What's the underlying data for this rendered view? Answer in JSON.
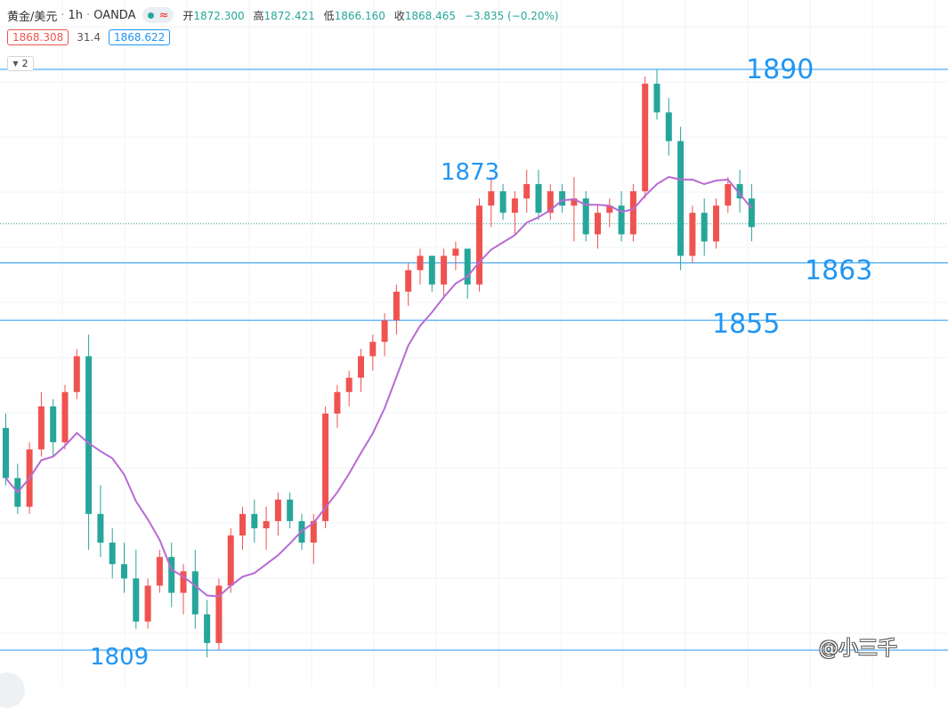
{
  "header": {
    "symbol": "黄金/美元",
    "interval": "1h",
    "source": "OANDA",
    "open_label": "开",
    "open": "1872.300",
    "high_label": "高",
    "high": "1872.421",
    "low_label": "低",
    "low": "1866.160",
    "close_label": "收",
    "close": "1868.465",
    "change": "−3.835 (−0.20%)"
  },
  "quote": {
    "bid": "1868.308",
    "spread": "31.4",
    "ask": "1868.622"
  },
  "indicator_toggle": {
    "count": "2"
  },
  "annotations": {
    "level_1890": "1890",
    "level_1873": "1873",
    "level_1863": "1863",
    "level_1855": "1855",
    "level_1809": "1809"
  },
  "watermark": "@小三千",
  "colors": {
    "up": "#ef5350",
    "down": "#26a69a",
    "ma": "#b86ad4",
    "level_line": "#2196f3"
  },
  "chart_data": {
    "type": "candlestick",
    "interval": "1h",
    "ylim": [
      1805,
      1893
    ],
    "horizontal_levels": [
      1890,
      1863,
      1855,
      1809
    ],
    "ohlc_approx": [
      [
        1840,
        1842,
        1832,
        1833
      ],
      [
        1833,
        1835,
        1828,
        1829
      ],
      [
        1829,
        1838,
        1828,
        1837
      ],
      [
        1837,
        1845,
        1836,
        1843
      ],
      [
        1843,
        1844,
        1836,
        1838
      ],
      [
        1838,
        1846,
        1837,
        1845
      ],
      [
        1845,
        1851,
        1844,
        1850
      ],
      [
        1850,
        1853,
        1823,
        1828
      ],
      [
        1828,
        1832,
        1822,
        1824
      ],
      [
        1824,
        1826,
        1819,
        1821
      ],
      [
        1821,
        1824,
        1817,
        1819
      ],
      [
        1819,
        1823,
        1812,
        1813
      ],
      [
        1813,
        1819,
        1812,
        1818
      ],
      [
        1818,
        1823,
        1817,
        1822
      ],
      [
        1822,
        1824,
        1815,
        1817
      ],
      [
        1817,
        1821,
        1814,
        1820
      ],
      [
        1820,
        1823,
        1812,
        1814
      ],
      [
        1814,
        1816,
        1808,
        1810
      ],
      [
        1810,
        1819,
        1809,
        1818
      ],
      [
        1818,
        1826,
        1817,
        1825
      ],
      [
        1825,
        1829,
        1823,
        1828
      ],
      [
        1828,
        1830,
        1824,
        1826
      ],
      [
        1826,
        1829,
        1823,
        1827
      ],
      [
        1827,
        1831,
        1825,
        1830
      ],
      [
        1830,
        1831,
        1826,
        1827
      ],
      [
        1827,
        1828,
        1823,
        1824
      ],
      [
        1824,
        1828,
        1821,
        1827
      ],
      [
        1827,
        1843,
        1826,
        1842
      ],
      [
        1842,
        1846,
        1840,
        1845
      ],
      [
        1845,
        1848,
        1843,
        1847
      ],
      [
        1847,
        1851,
        1845,
        1850
      ],
      [
        1850,
        1853,
        1848,
        1852
      ],
      [
        1852,
        1856,
        1850,
        1855
      ],
      [
        1855,
        1860,
        1853,
        1859
      ],
      [
        1859,
        1863,
        1857,
        1862
      ],
      [
        1862,
        1865,
        1860,
        1864
      ],
      [
        1864,
        1862,
        1859,
        1860
      ],
      [
        1860,
        1865,
        1858,
        1864
      ],
      [
        1864,
        1866,
        1862,
        1865
      ],
      [
        1865,
        1862,
        1858,
        1860
      ],
      [
        1860,
        1872,
        1859,
        1871
      ],
      [
        1871,
        1875,
        1868,
        1873
      ],
      [
        1873,
        1874,
        1869,
        1870
      ],
      [
        1870,
        1873,
        1867,
        1872
      ],
      [
        1872,
        1876,
        1870,
        1874
      ],
      [
        1874,
        1876,
        1869,
        1870
      ],
      [
        1870,
        1874,
        1869,
        1873
      ],
      [
        1873,
        1874,
        1870,
        1871
      ],
      [
        1871,
        1875,
        1866,
        1872
      ],
      [
        1872,
        1873,
        1866,
        1867
      ],
      [
        1867,
        1871,
        1865,
        1870
      ],
      [
        1870,
        1872,
        1868,
        1871
      ],
      [
        1871,
        1873,
        1866,
        1867
      ],
      [
        1867,
        1874,
        1866,
        1873
      ],
      [
        1873,
        1889,
        1872,
        1888
      ],
      [
        1888,
        1890,
        1883,
        1884
      ],
      [
        1884,
        1886,
        1878,
        1880
      ],
      [
        1880,
        1882,
        1862,
        1864
      ],
      [
        1864,
        1871,
        1863,
        1870
      ],
      [
        1870,
        1872,
        1864,
        1866
      ],
      [
        1866,
        1872,
        1865,
        1871
      ],
      [
        1871,
        1875,
        1870,
        1874
      ],
      [
        1874,
        1876,
        1870,
        1872
      ],
      [
        1872,
        1874,
        1866,
        1868
      ]
    ],
    "moving_average_note": "purple moving average line"
  }
}
